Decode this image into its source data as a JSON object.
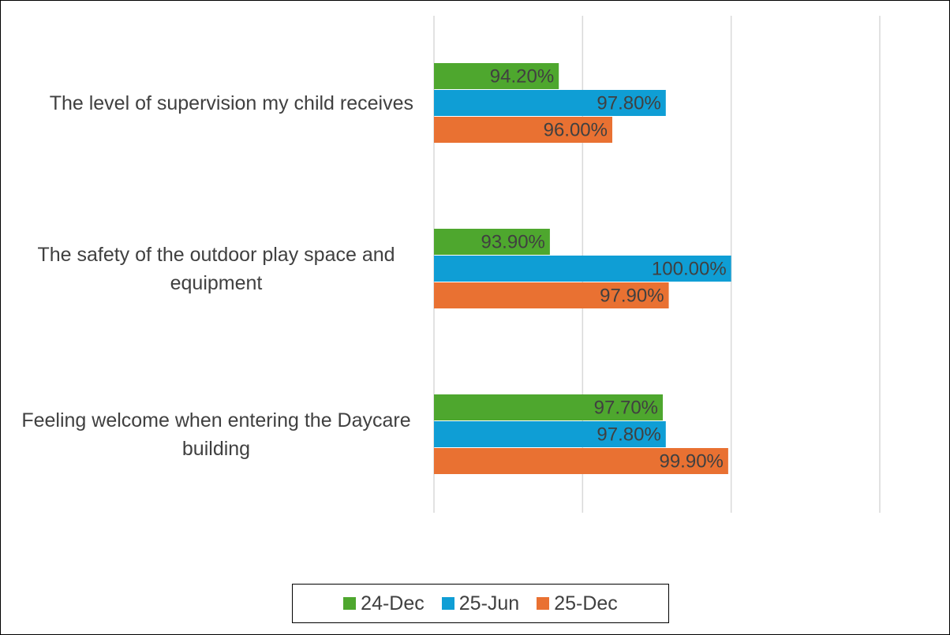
{
  "chart_data": {
    "type": "hbar",
    "categories": [
      "The level of supervision my child receives",
      "The safety of the outdoor play space and equipment",
      "Feeling welcome when entering the Daycare building"
    ],
    "series": [
      {
        "name": "24-Dec",
        "color": "#4ea72e",
        "values": [
          94.2,
          93.9,
          97.7
        ],
        "value_labels": [
          "94.20%",
          "93.90%",
          "97.70%"
        ]
      },
      {
        "name": "25-Jun",
        "color": "#0f9ed5",
        "values": [
          97.8,
          100,
          97.8
        ],
        "value_labels": [
          "97.80%",
          "100.00%",
          "97.80%"
        ]
      },
      {
        "name": "25-Dec",
        "color": "#e97132",
        "values": [
          96,
          97.9,
          99.9
        ],
        "value_labels": [
          "96.00%",
          "97.90%",
          "99.90%"
        ]
      }
    ],
    "xlim": [
      90,
      105
    ],
    "xticks": [
      90,
      95,
      100,
      105
    ],
    "grid": true,
    "legend": "bottom"
  }
}
